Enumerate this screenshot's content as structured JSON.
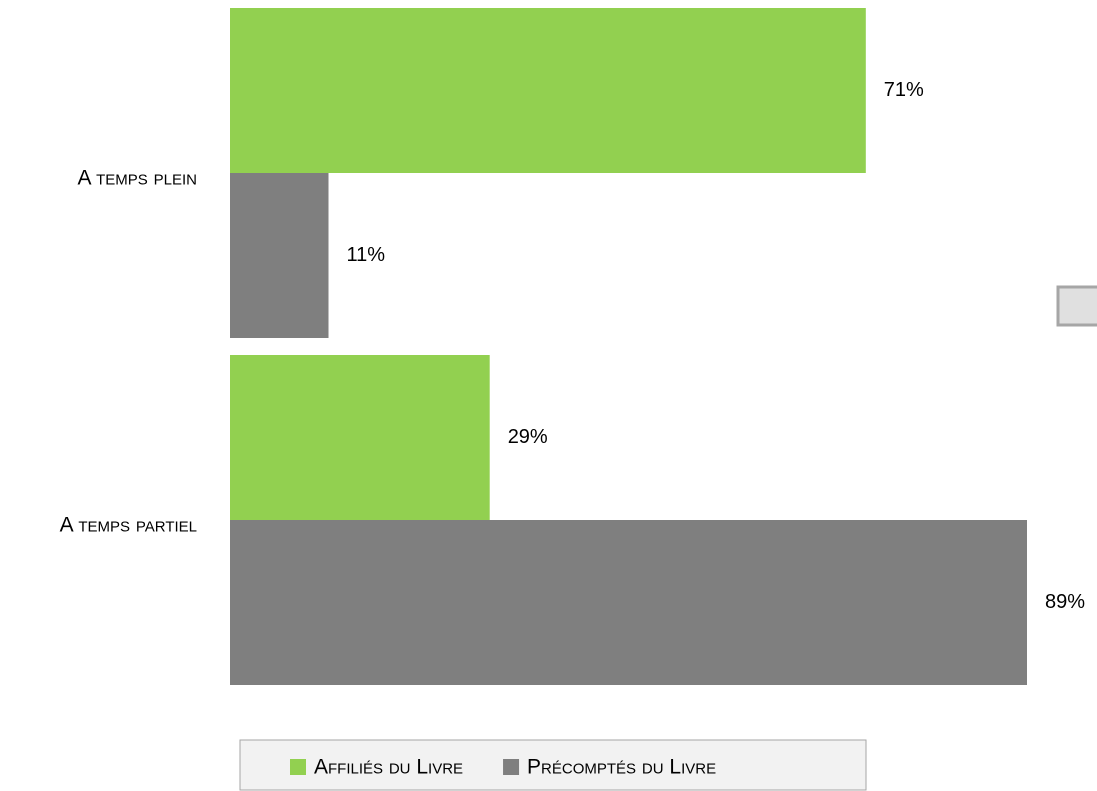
{
  "chart_data": {
    "type": "barh",
    "categories": [
      "A temps plein",
      "A temps partiel"
    ],
    "series": [
      {
        "name": "Affiliés du Livre",
        "color": "#92d050",
        "values": [
          71,
          29
        ],
        "value_labels": [
          "71%",
          "29%"
        ]
      },
      {
        "name": "Précomptés du Livre",
        "color": "#7f7f7f",
        "values": [
          11,
          89
        ],
        "value_labels": [
          "11%",
          "89%"
        ]
      }
    ],
    "legend": "bottom"
  }
}
